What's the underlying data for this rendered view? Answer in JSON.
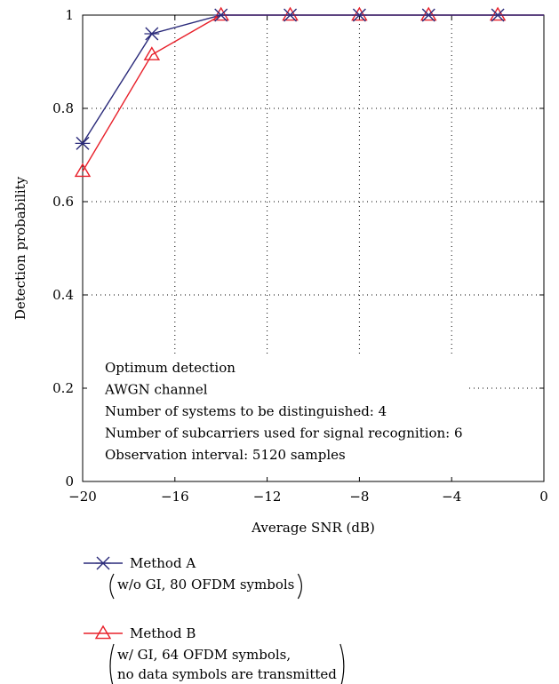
{
  "chart_data": {
    "type": "line",
    "xlabel": "Average SNR (dB)",
    "ylabel": "Detection probability",
    "xlim": [
      -20,
      0
    ],
    "ylim": [
      0,
      1
    ],
    "x_ticks": [
      -20,
      -16,
      -12,
      -8,
      -4,
      0
    ],
    "x_tick_labels": [
      "−20",
      "−16",
      "−12",
      "−8",
      "−4",
      "0"
    ],
    "y_ticks": [
      0,
      0.2,
      0.4,
      0.6,
      0.8,
      1
    ],
    "y_tick_labels": [
      "0",
      "0.2",
      "0.4",
      "0.6",
      "0.8",
      "1"
    ],
    "grid": "dotted",
    "annotation_lines": [
      "Optimum detection",
      "AWGN channel",
      "Number of systems to be distinguished: 4",
      "Number of subcarriers used for signal recognition: 6",
      "Observation interval: 5120 samples"
    ],
    "series": [
      {
        "name": "Method A",
        "details": [
          "w/o GI, 80 OFDM symbols"
        ],
        "color": "#2a2a7a",
        "marker": "x",
        "x": [
          -20,
          -17,
          -14,
          -11,
          -8,
          -5,
          -2,
          0
        ],
        "y": [
          0.725,
          0.96,
          1.0,
          1.0,
          1.0,
          1.0,
          1.0,
          1.0
        ],
        "marker_x": [
          -20,
          -17,
          -14,
          -11,
          -8,
          -5,
          -2
        ]
      },
      {
        "name": "Method B",
        "details": [
          "w/ GI, 64 OFDM symbols,",
          "no data symbols are transmitted"
        ],
        "color": "#e8202a",
        "marker": "triangle",
        "x": [
          -20,
          -17,
          -14,
          -11,
          -8,
          -5,
          -2,
          0
        ],
        "y": [
          0.665,
          0.915,
          1.0,
          1.0,
          1.0,
          1.0,
          1.0,
          1.0
        ],
        "marker_x": [
          -20,
          -17,
          -14,
          -11,
          -8,
          -5,
          -2
        ]
      }
    ]
  }
}
